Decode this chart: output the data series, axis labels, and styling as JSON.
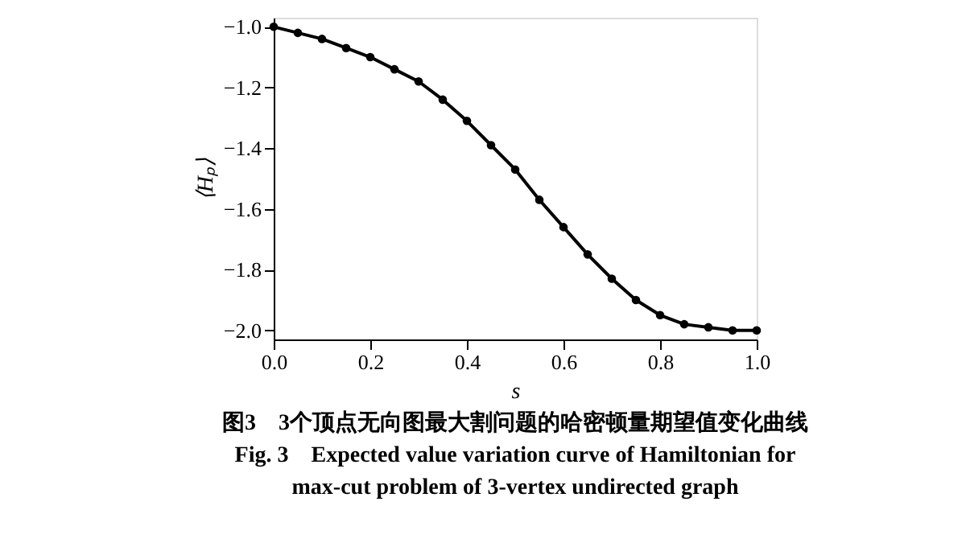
{
  "chart_data": {
    "type": "line",
    "xlabel": "s",
    "ylabel": "⟨Hₚ⟩",
    "x": [
      0,
      0.05,
      0.1,
      0.15,
      0.2,
      0.25,
      0.3,
      0.35,
      0.4,
      0.45,
      0.5,
      0.55,
      0.6,
      0.65,
      0.7,
      0.75,
      0.8,
      0.85,
      0.9,
      0.95,
      1.0
    ],
    "values": [
      -1.0,
      -1.02,
      -1.04,
      -1.07,
      -1.1,
      -1.14,
      -1.18,
      -1.24,
      -1.31,
      -1.39,
      -1.47,
      -1.57,
      -1.66,
      -1.75,
      -1.83,
      -1.9,
      -1.95,
      -1.98,
      -1.99,
      -2.0,
      -2.0
    ],
    "color": "#000000",
    "marker": "circle",
    "line_style": "solid",
    "grid": false,
    "xlim": [
      0,
      1
    ],
    "xticks": [
      {
        "value": 0,
        "label": "0.0"
      },
      0.2,
      0.4,
      0.6,
      0.8,
      {
        "value": 1,
        "label": "1.0"
      }
    ],
    "ylim": [
      -2.03,
      -0.97
    ],
    "yticks": [
      {
        "value": -2,
        "label": "−2.0"
      },
      -1.8,
      -1.6,
      -1.4,
      -1.2,
      {
        "value": -1,
        "label": "−1.0"
      }
    ],
    "annotations": [
      "图3　3个顶点无向图最大割问题的哈密顿量期望值变化曲线",
      "Fig. 3　Expected value variation curve of Hamiltonian for max-cut problem of 3-vertex undirected graph"
    ]
  }
}
